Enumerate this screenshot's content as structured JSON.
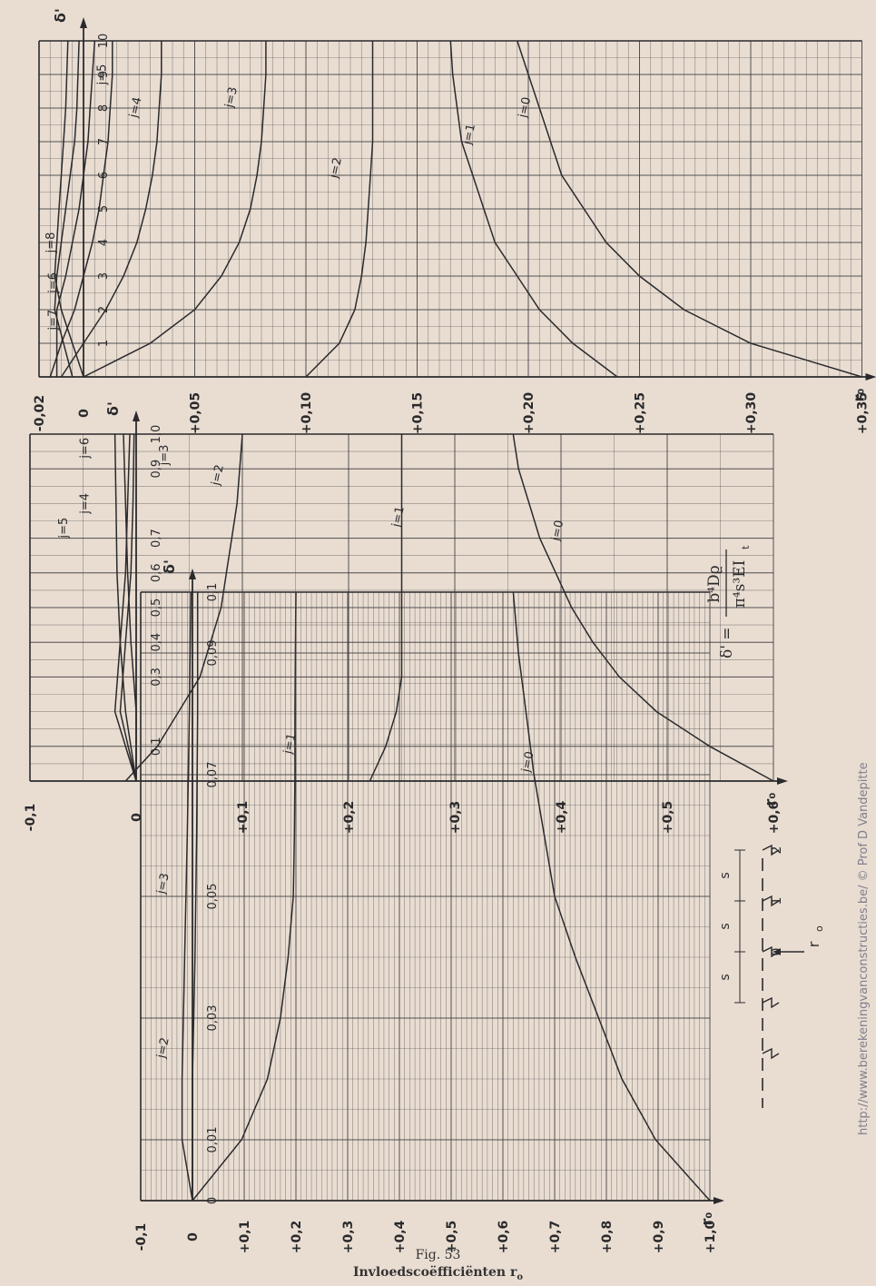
{
  "figure": {
    "number": "Fig. 53",
    "title": "Invloedscoëfficiënten r",
    "title_sub": "o",
    "watermark": "http://www.berekeningvanconstructies.be/ © Prof D Vandepitte",
    "formula": {
      "lhs": "δ' =",
      "numerator": "b⁴Dϱ",
      "denominator": "π⁴s³EI",
      "denominator_sub": "t"
    }
  },
  "colors": {
    "paper": "#e9ddd2",
    "ink": "#2a2a2c",
    "grid": "#3c3c3e"
  },
  "scheme": {
    "spacing_labels": [
      "s",
      "s",
      "s"
    ],
    "support_labels": [
      "0",
      "1",
      "2"
    ],
    "load_label": "r",
    "load_label_sub": "o"
  },
  "chart_data": [
    {
      "type": "line",
      "id": "chart-1",
      "x_axis_label": "δ'",
      "y_axis_label": "r₀",
      "x_range": [
        0,
        0.1
      ],
      "y_range": [
        -0.1,
        1.0
      ],
      "x_ticks": [
        "0",
        "0,01",
        "0,03",
        "0,05",
        "0,07",
        "0,09",
        "0,1"
      ],
      "x_tick_values": [
        0,
        0.01,
        0.03,
        0.05,
        0.07,
        0.09,
        0.1
      ],
      "y_ticks": [
        "-0,1",
        "0",
        "+0,1",
        "+0,2",
        "+0,3",
        "+0,4",
        "+0,5",
        "+0,6",
        "+0,7",
        "+0,8",
        "+0,9",
        "+1,0"
      ],
      "y_tick_values": [
        -0.1,
        0,
        0.1,
        0.2,
        0.3,
        0.4,
        0.5,
        0.6,
        0.7,
        0.8,
        0.9,
        1.0
      ],
      "series": [
        {
          "name": "j=0",
          "label": "j=0",
          "points": [
            [
              0,
              1.0
            ],
            [
              0.01,
              0.895
            ],
            [
              0.02,
              0.83
            ],
            [
              0.03,
              0.785
            ],
            [
              0.04,
              0.74
            ],
            [
              0.05,
              0.7
            ],
            [
              0.06,
              0.68
            ],
            [
              0.07,
              0.66
            ],
            [
              0.08,
              0.645
            ],
            [
              0.09,
              0.63
            ],
            [
              0.1,
              0.62
            ]
          ]
        },
        {
          "name": "j=1",
          "label": "j=1",
          "points": [
            [
              0,
              0
            ],
            [
              0.01,
              0.095
            ],
            [
              0.02,
              0.145
            ],
            [
              0.03,
              0.17
            ],
            [
              0.04,
              0.185
            ],
            [
              0.05,
              0.195
            ],
            [
              0.06,
              0.197
            ],
            [
              0.07,
              0.198
            ],
            [
              0.08,
              0.198
            ],
            [
              0.09,
              0.199
            ],
            [
              0.1,
              0.2
            ]
          ]
        },
        {
          "name": "j=2",
          "label": "j=2",
          "points": [
            [
              0,
              0
            ],
            [
              0.005,
              -0.01
            ],
            [
              0.01,
              -0.02
            ],
            [
              0.02,
              -0.02
            ],
            [
              0.04,
              -0.015
            ],
            [
              0.06,
              -0.01
            ],
            [
              0.08,
              -0.006
            ],
            [
              0.1,
              -0.003
            ]
          ]
        },
        {
          "name": "j=3",
          "label": "j=3",
          "points": [
            [
              0,
              0
            ],
            [
              0.02,
              0
            ],
            [
              0.04,
              0.005
            ],
            [
              0.06,
              0.008
            ],
            [
              0.08,
              0.01
            ],
            [
              0.1,
              0.01
            ]
          ]
        }
      ]
    },
    {
      "type": "line",
      "id": "chart-2",
      "x_axis_label": "δ'",
      "y_axis_label": "r₀",
      "x_range": [
        0,
        1.0
      ],
      "y_range": [
        -0.1,
        0.6
      ],
      "x_ticks": [
        "0,1",
        "0,3",
        "0,4",
        "0,5",
        "0,6",
        "0,7",
        "0,9",
        "1,0"
      ],
      "x_tick_values": [
        0.1,
        0.3,
        0.4,
        0.5,
        0.6,
        0.7,
        0.9,
        1.0
      ],
      "y_ticks": [
        "-0,1",
        "0",
        "+0,1",
        "+0,2",
        "+0,3",
        "+0,4",
        "+0,5",
        "+0,6"
      ],
      "y_tick_values": [
        -0.1,
        0,
        0.1,
        0.2,
        0.3,
        0.4,
        0.5,
        0.6
      ],
      "series": [
        {
          "name": "j=0",
          "label": "j=0",
          "points": [
            [
              0,
              0.6
            ],
            [
              0.1,
              0.54
            ],
            [
              0.2,
              0.49
            ],
            [
              0.3,
              0.455
            ],
            [
              0.4,
              0.43
            ],
            [
              0.5,
              0.41
            ],
            [
              0.6,
              0.395
            ],
            [
              0.7,
              0.38
            ],
            [
              0.8,
              0.37
            ],
            [
              0.9,
              0.36
            ],
            [
              1.0,
              0.355
            ]
          ]
        },
        {
          "name": "j=1",
          "label": "j=1",
          "points": [
            [
              0,
              0.22
            ],
            [
              0.1,
              0.235
            ],
            [
              0.2,
              0.245
            ],
            [
              0.3,
              0.25
            ],
            [
              0.4,
              0.25
            ],
            [
              0.5,
              0.25
            ],
            [
              0.6,
              0.25
            ],
            [
              0.7,
              0.25
            ],
            [
              0.8,
              0.25
            ],
            [
              1.0,
              0.25
            ]
          ]
        },
        {
          "name": "j=2",
          "label": "j=2",
          "points": [
            [
              0,
              -0.01
            ],
            [
              0.1,
              0.02
            ],
            [
              0.2,
              0.04
            ],
            [
              0.3,
              0.06
            ],
            [
              0.4,
              0.07
            ],
            [
              0.5,
              0.08
            ],
            [
              0.6,
              0.085
            ],
            [
              0.7,
              0.09
            ],
            [
              0.8,
              0.095
            ],
            [
              1.0,
              0.1
            ]
          ]
        },
        {
          "name": "j=3",
          "label": "j=3",
          "points": [
            [
              0,
              0
            ],
            [
              0.2,
              -0.01
            ],
            [
              0.4,
              -0.015
            ],
            [
              0.6,
              -0.018
            ],
            [
              0.8,
              -0.019
            ],
            [
              1.0,
              -0.02
            ]
          ]
        },
        {
          "name": "j=4",
          "label": "j=4",
          "points": [
            [
              0,
              0
            ],
            [
              0.2,
              -0.02
            ],
            [
              0.4,
              -0.015
            ],
            [
              0.6,
              -0.01
            ],
            [
              0.8,
              -0.008
            ],
            [
              1.0,
              -0.006
            ]
          ]
        },
        {
          "name": "j=5",
          "label": "j=5",
          "points": [
            [
              0,
              0
            ],
            [
              0.2,
              -0.015
            ],
            [
              0.4,
              -0.01
            ],
            [
              0.6,
              -0.005
            ],
            [
              0.8,
              -0.003
            ],
            [
              1.0,
              -0.002
            ]
          ]
        },
        {
          "name": "j=6",
          "label": "j=6",
          "points": [
            [
              0,
              0
            ],
            [
              0.2,
              0
            ],
            [
              0.4,
              -0.005
            ],
            [
              0.6,
              -0.008
            ],
            [
              0.8,
              -0.01
            ],
            [
              1.0,
              -0.012
            ]
          ]
        }
      ]
    },
    {
      "type": "line",
      "id": "chart-3",
      "x_axis_label": "δ'",
      "y_axis_label": "r₀",
      "x_range": [
        0,
        10
      ],
      "y_range": [
        -0.02,
        0.35
      ],
      "x_ticks": [
        "1",
        "2",
        "3",
        "4",
        "5",
        "6",
        "7",
        "8",
        "9",
        "10"
      ],
      "x_tick_values": [
        1,
        2,
        3,
        4,
        5,
        6,
        7,
        8,
        9,
        10
      ],
      "y_ticks": [
        "-0,02",
        "0",
        "+0,05",
        "+0,10",
        "+0,15",
        "+0,20",
        "+0,25",
        "+0,30",
        "+0,35"
      ],
      "y_tick_values": [
        -0.02,
        0,
        0.05,
        0.1,
        0.15,
        0.2,
        0.25,
        0.3,
        0.35
      ],
      "series": [
        {
          "name": "j=0",
          "label": "j=0",
          "points": [
            [
              0,
              0.35
            ],
            [
              1,
              0.3
            ],
            [
              2,
              0.27
            ],
            [
              3,
              0.25
            ],
            [
              4,
              0.235
            ],
            [
              5,
              0.225
            ],
            [
              6,
              0.215
            ],
            [
              7,
              0.21
            ],
            [
              8,
              0.205
            ],
            [
              9,
              0.2
            ],
            [
              10,
              0.195
            ]
          ]
        },
        {
          "name": "j=1",
          "label": "j=1",
          "points": [
            [
              0,
              0.24
            ],
            [
              1,
              0.22
            ],
            [
              2,
              0.205
            ],
            [
              3,
              0.195
            ],
            [
              4,
              0.185
            ],
            [
              5,
              0.18
            ],
            [
              6,
              0.175
            ],
            [
              7,
              0.17
            ],
            [
              8,
              0.168
            ],
            [
              9,
              0.166
            ],
            [
              10,
              0.165
            ]
          ]
        },
        {
          "name": "j=2",
          "label": "j=2",
          "points": [
            [
              0,
              0.1
            ],
            [
              1,
              0.115
            ],
            [
              2,
              0.122
            ],
            [
              3,
              0.125
            ],
            [
              4,
              0.127
            ],
            [
              5,
              0.128
            ],
            [
              6,
              0.129
            ],
            [
              7,
              0.13
            ],
            [
              8,
              0.13
            ],
            [
              10,
              0.13
            ]
          ]
        },
        {
          "name": "j=3",
          "label": "j=3",
          "points": [
            [
              0,
              0
            ],
            [
              1,
              0.03
            ],
            [
              2,
              0.05
            ],
            [
              3,
              0.062
            ],
            [
              4,
              0.07
            ],
            [
              5,
              0.075
            ],
            [
              6,
              0.078
            ],
            [
              7,
              0.08
            ],
            [
              8,
              0.081
            ],
            [
              9,
              0.082
            ],
            [
              10,
              0.082
            ]
          ]
        },
        {
          "name": "j=4",
          "label": "j=4",
          "points": [
            [
              0,
              -0.01
            ],
            [
              1,
              0
            ],
            [
              2,
              0.01
            ],
            [
              3,
              0.018
            ],
            [
              4,
              0.024
            ],
            [
              5,
              0.028
            ],
            [
              6,
              0.031
            ],
            [
              7,
              0.033
            ],
            [
              8,
              0.034
            ],
            [
              9,
              0.035
            ],
            [
              10,
              0.035
            ]
          ]
        },
        {
          "name": "j=5",
          "label": "j=5",
          "points": [
            [
              0,
              -0.015
            ],
            [
              1,
              -0.01
            ],
            [
              2,
              -0.004
            ],
            [
              3,
              0
            ],
            [
              4,
              0.004
            ],
            [
              5,
              0.007
            ],
            [
              6,
              0.009
            ],
            [
              7,
              0.011
            ],
            [
              8,
              0.012
            ],
            [
              9,
              0.013
            ],
            [
              10,
              0.013
            ]
          ]
        },
        {
          "name": "j=6",
          "label": "j=6",
          "points": [
            [
              0,
              -0.012
            ],
            [
              2,
              -0.012
            ],
            [
              3,
              -0.008
            ],
            [
              4,
              -0.005
            ],
            [
              5,
              -0.002
            ],
            [
              6,
              0
            ],
            [
              7,
              0.002
            ],
            [
              8,
              0.003
            ],
            [
              9,
              0.004
            ],
            [
              10,
              0.005
            ]
          ]
        },
        {
          "name": "j=7",
          "label": "j=7",
          "points": [
            [
              0,
              -0.005
            ],
            [
              2,
              -0.013
            ],
            [
              3,
              -0.012
            ],
            [
              4,
              -0.01
            ],
            [
              5,
              -0.008
            ],
            [
              6,
              -0.006
            ],
            [
              7,
              -0.004
            ],
            [
              8,
              -0.003
            ],
            [
              10,
              -0.002
            ]
          ]
        },
        {
          "name": "j=8",
          "label": "j=8",
          "points": [
            [
              0,
              0
            ],
            [
              2,
              -0.01
            ],
            [
              3,
              -0.013
            ],
            [
              4,
              -0.012
            ],
            [
              5,
              -0.011
            ],
            [
              6,
              -0.01
            ],
            [
              7,
              -0.009
            ],
            [
              8,
              -0.008
            ],
            [
              10,
              -0.007
            ]
          ]
        }
      ]
    }
  ]
}
